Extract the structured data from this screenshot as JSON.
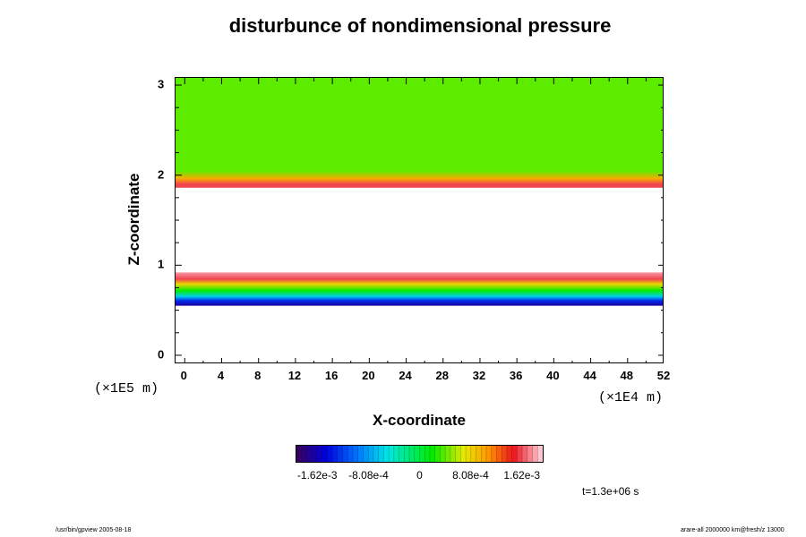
{
  "chart_data": {
    "type": "heatmap",
    "title": "disturbunce of nondimensional pressure",
    "xlabel": "X-coordinate",
    "ylabel": "Z-coordinate",
    "x_unit": "(×1E4 m)",
    "y_unit": "(×1E5 m)",
    "xlim": [
      -1,
      52
    ],
    "ylim": [
      -0.1,
      3.08
    ],
    "x_ticks": [
      0,
      4,
      8,
      12,
      16,
      20,
      24,
      28,
      32,
      36,
      40,
      44,
      48,
      52
    ],
    "x_tick_labels": [
      "0",
      "4",
      "8",
      "12",
      "16",
      "20",
      "24",
      "28",
      "32",
      "36",
      "40",
      "44",
      "48",
      "52"
    ],
    "y_ticks": [
      0,
      1,
      2,
      3
    ],
    "y_tick_labels": [
      "0",
      "1",
      "2",
      "3"
    ],
    "colorbar": {
      "tick_labels": [
        "-1.62e-3",
        "-8.08e-4",
        "0",
        "8.08e-4",
        "1.62e-3"
      ],
      "tick_values": [
        -0.00162,
        -0.000808,
        0,
        0.000808,
        0.00162
      ],
      "range": [
        -0.00195,
        0.00195
      ]
    },
    "bands": [
      {
        "name": "upper",
        "z_bottom": 1.86,
        "z_top": 3.08,
        "z_peak": 1.9,
        "peak_value": 0.0016,
        "top_value": 0.0004
      },
      {
        "name": "lower",
        "z_bottom": 0.55,
        "z_top": 0.92,
        "bottom_value": -0.0017,
        "top_value": 0.0018
      }
    ],
    "time_label": "t=1.3e+06 s"
  },
  "footer": {
    "left": "/usr/bin/gpview 2005-08-18",
    "right": "arare-all 2000000 km@fresh/z 13000"
  }
}
